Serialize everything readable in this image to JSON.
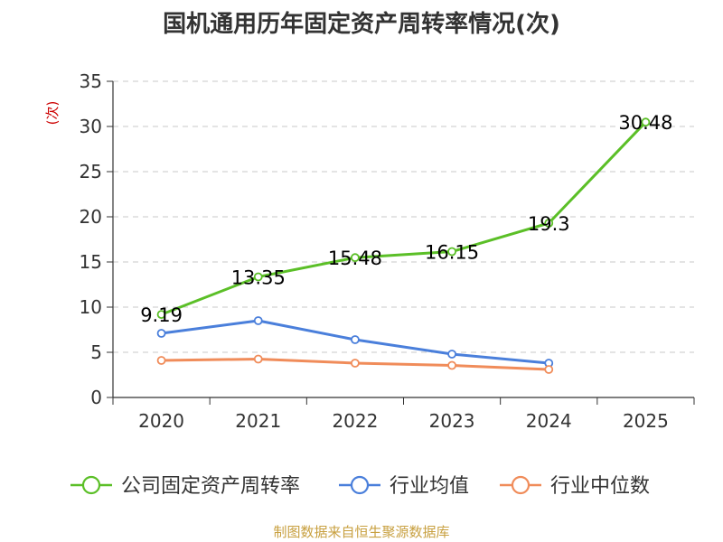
{
  "chart_data": {
    "type": "line",
    "title": "国机通用历年固定资产周转率情况(次)",
    "ylabel": "(次)",
    "xlabel": "",
    "categories": [
      "2020",
      "2021",
      "2022",
      "2023",
      "2024",
      "2025"
    ],
    "ylim": [
      0,
      35
    ],
    "yticks": [
      0,
      5,
      10,
      15,
      20,
      25,
      30,
      35
    ],
    "grid": true,
    "legend_position": "bottom",
    "series": [
      {
        "name": "公司固定资产周转率",
        "color": "#5bbf27",
        "values": [
          9.19,
          13.35,
          15.48,
          16.15,
          19.3,
          30.48
        ],
        "labels": [
          "9.19",
          "13.35",
          "15.48",
          "16.15",
          "19.3",
          "30.48"
        ]
      },
      {
        "name": "行业均值",
        "color": "#4a7fdb",
        "values": [
          7.1,
          8.5,
          6.4,
          4.8,
          3.8,
          null
        ]
      },
      {
        "name": "行业中位数",
        "color": "#f08c5a",
        "values": [
          4.1,
          4.25,
          3.8,
          3.55,
          3.1,
          null
        ]
      }
    ]
  },
  "source": "制图数据来自恒生聚源数据库"
}
